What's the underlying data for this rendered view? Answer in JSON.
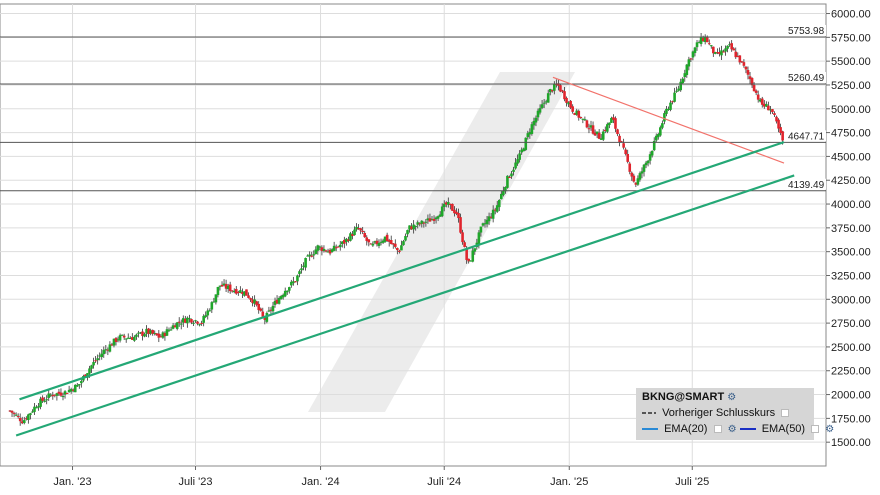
{
  "chart_data": {
    "type": "candlestick",
    "symbol": "BKNG@SMART",
    "ylim": [
      1250,
      6100
    ],
    "y_ticks": [
      1500,
      1750,
      2000,
      2250,
      2500,
      2750,
      3000,
      3250,
      3500,
      3750,
      4000,
      4250,
      4500,
      4750,
      5000,
      5250,
      5500,
      5750,
      6000
    ],
    "y_tick_labels": [
      "1500.00",
      "1750.00",
      "2000.00",
      "2250.00",
      "2500.00",
      "2750.00",
      "3000.00",
      "3250.00",
      "3500.00",
      "3750.00",
      "4000.00",
      "4250.00",
      "4500.00",
      "4750.00",
      "5000.00",
      "5250.00",
      "5500.00",
      "5750.00",
      "6000.00"
    ],
    "x_start": "2022-10-01",
    "x_end": "2025-11-13",
    "x_ticks": [
      {
        "date": "2023-01-01",
        "label": "Jan. '23"
      },
      {
        "date": "2023-07-01",
        "label": "Juli '23"
      },
      {
        "date": "2024-01-01",
        "label": "Jan. '24"
      },
      {
        "date": "2024-07-01",
        "label": "Juli '24"
      },
      {
        "date": "2025-01-01",
        "label": "Jan. '25"
      },
      {
        "date": "2025-07-01",
        "label": "Juli '25"
      }
    ],
    "grid": true,
    "closes": [
      {
        "date": "2022-10-01",
        "close": 1830
      },
      {
        "date": "2022-10-20",
        "close": 1720
      },
      {
        "date": "2022-11-10",
        "close": 1900
      },
      {
        "date": "2022-12-01",
        "close": 2000
      },
      {
        "date": "2022-12-20",
        "close": 2020
      },
      {
        "date": "2023-01-10",
        "close": 2100
      },
      {
        "date": "2023-01-25",
        "close": 2270
      },
      {
        "date": "2023-02-15",
        "close": 2450
      },
      {
        "date": "2023-03-10",
        "close": 2600
      },
      {
        "date": "2023-04-01",
        "close": 2600
      },
      {
        "date": "2023-04-20",
        "close": 2660
      },
      {
        "date": "2023-05-10",
        "close": 2600
      },
      {
        "date": "2023-06-01",
        "close": 2740
      },
      {
        "date": "2023-06-20",
        "close": 2800
      },
      {
        "date": "2023-07-10",
        "close": 2760
      },
      {
        "date": "2023-07-25",
        "close": 2950
      },
      {
        "date": "2023-08-05",
        "close": 3150
      },
      {
        "date": "2023-08-25",
        "close": 3100
      },
      {
        "date": "2023-09-10",
        "close": 3080
      },
      {
        "date": "2023-09-25",
        "close": 2980
      },
      {
        "date": "2023-10-10",
        "close": 2780
      },
      {
        "date": "2023-10-25",
        "close": 2950
      },
      {
        "date": "2023-11-10",
        "close": 3100
      },
      {
        "date": "2023-11-25",
        "close": 3200
      },
      {
        "date": "2023-12-10",
        "close": 3400
      },
      {
        "date": "2023-12-28",
        "close": 3550
      },
      {
        "date": "2024-01-15",
        "close": 3500
      },
      {
        "date": "2024-02-05",
        "close": 3600
      },
      {
        "date": "2024-02-25",
        "close": 3750
      },
      {
        "date": "2024-03-15",
        "close": 3550
      },
      {
        "date": "2024-04-05",
        "close": 3650
      },
      {
        "date": "2024-04-25",
        "close": 3500
      },
      {
        "date": "2024-05-10",
        "close": 3750
      },
      {
        "date": "2024-05-30",
        "close": 3800
      },
      {
        "date": "2024-06-15",
        "close": 3850
      },
      {
        "date": "2024-07-05",
        "close": 4000
      },
      {
        "date": "2024-07-20",
        "close": 3900
      },
      {
        "date": "2024-08-05",
        "close": 3350
      },
      {
        "date": "2024-08-25",
        "close": 3750
      },
      {
        "date": "2024-09-15",
        "close": 3950
      },
      {
        "date": "2024-10-01",
        "close": 4250
      },
      {
        "date": "2024-10-20",
        "close": 4500
      },
      {
        "date": "2024-11-05",
        "close": 4800
      },
      {
        "date": "2024-11-20",
        "close": 5000
      },
      {
        "date": "2024-12-05",
        "close": 5200
      },
      {
        "date": "2024-12-15",
        "close": 5250
      },
      {
        "date": "2025-01-05",
        "close": 5000
      },
      {
        "date": "2025-01-25",
        "close": 4850
      },
      {
        "date": "2025-02-15",
        "close": 4700
      },
      {
        "date": "2025-03-05",
        "close": 4900
      },
      {
        "date": "2025-03-20",
        "close": 4600
      },
      {
        "date": "2025-04-08",
        "close": 4200
      },
      {
        "date": "2025-04-25",
        "close": 4450
      },
      {
        "date": "2025-05-10",
        "close": 4700
      },
      {
        "date": "2025-05-25",
        "close": 5000
      },
      {
        "date": "2025-06-10",
        "close": 5200
      },
      {
        "date": "2025-06-25",
        "close": 5500
      },
      {
        "date": "2025-07-10",
        "close": 5700
      },
      {
        "date": "2025-07-20",
        "close": 5750
      },
      {
        "date": "2025-08-05",
        "close": 5550
      },
      {
        "date": "2025-08-25",
        "close": 5650
      },
      {
        "date": "2025-09-10",
        "close": 5500
      },
      {
        "date": "2025-09-25",
        "close": 5300
      },
      {
        "date": "2025-10-10",
        "close": 5050
      },
      {
        "date": "2025-10-25",
        "close": 5000
      },
      {
        "date": "2025-11-13",
        "close": 4620
      }
    ],
    "levels": [
      {
        "value": 5753.98,
        "label": "5753.98"
      },
      {
        "value": 5260.49,
        "label": "5260.49"
      },
      {
        "value": 4647.71,
        "label": "4647.71"
      },
      {
        "value": 4139.49,
        "label": "4139.49"
      }
    ],
    "trendlines": [
      {
        "name": "resistance",
        "color": "#f2726b",
        "points": [
          {
            "date": "2024-12-08",
            "value": 5330
          },
          {
            "date": "2025-11-13",
            "value": 4430
          }
        ]
      },
      {
        "name": "support-upper",
        "color": "#24a876",
        "points": [
          {
            "date": "2022-10-15",
            "value": 1950
          },
          {
            "date": "2025-11-13",
            "value": 4650
          }
        ]
      },
      {
        "name": "support-lower",
        "color": "#24a876",
        "points": [
          {
            "date": "2022-10-10",
            "value": 1570
          },
          {
            "date": "2025-11-28",
            "value": 4300
          }
        ]
      }
    ],
    "colors": {
      "up": "#1fa62a",
      "down": "#e0242d",
      "grid": "#dddddd",
      "level": "#555555"
    }
  },
  "legend": {
    "symbol": "BKNG@SMART",
    "prev_close": "Vorheriger Schlusskurs",
    "ema20": "EMA(20)",
    "ema50": "EMA(50)",
    "ema20_color": "#2a8ad6",
    "ema50_color": "#1a2fc4"
  }
}
